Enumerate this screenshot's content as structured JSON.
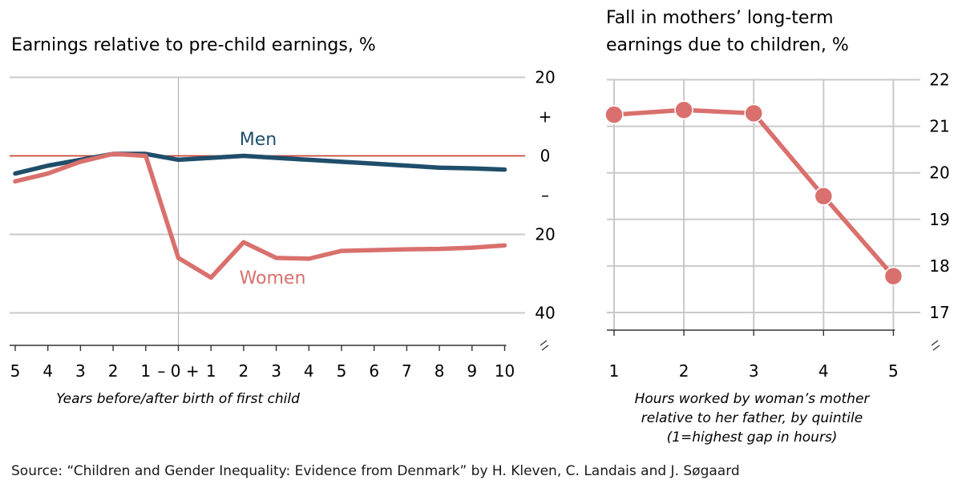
{
  "chart_data": [
    {
      "type": "line",
      "title": "Earnings relative to pre-child earnings, %",
      "xlabel": "Years before/after birth of first child",
      "x_tick_labels": [
        "5",
        "4",
        "3",
        "2",
        "1",
        "– 0 +",
        "1",
        "2",
        "3",
        "4",
        "5",
        "6",
        "7",
        "8",
        "9",
        "10"
      ],
      "x": [
        -5,
        -4,
        -3,
        -2,
        -1,
        0,
        1,
        2,
        3,
        4,
        5,
        6,
        7,
        8,
        9,
        10
      ],
      "y_tick_labels": [
        "20",
        "+",
        "0",
        "–",
        "20",
        "40"
      ],
      "y_ticks": [
        20,
        10,
        0,
        -10,
        -20,
        -40
      ],
      "ylim": [
        -44,
        20
      ],
      "zero_line": true,
      "gridlines": true,
      "axis_break": true,
      "series": [
        {
          "name": "Men",
          "color": "#1f4e6b",
          "values": [
            -4.5,
            -2.5,
            -1,
            0.5,
            0.5,
            -1,
            -0.5,
            0,
            -0.5,
            -1,
            -1.5,
            -2,
            -2.5,
            -3,
            -3.2,
            -3.5
          ]
        },
        {
          "name": "Women",
          "color": "#d9706d",
          "values": [
            -6.5,
            -4.5,
            -1.5,
            0.5,
            0,
            -26,
            -31,
            -22,
            -26,
            -26.2,
            -24.2,
            -24,
            -23.8,
            -23.7,
            -23.4,
            -22.8
          ]
        }
      ]
    },
    {
      "type": "line",
      "title": [
        "Fall in mothers’ long-term",
        "earnings due to children, %"
      ],
      "xlabel": [
        "Hours worked by woman’s mother",
        "relative to her father, by quintile",
        "(1=highest gap in hours)"
      ],
      "x": [
        1,
        2,
        3,
        4,
        5
      ],
      "x_tick_labels": [
        "1",
        "2",
        "3",
        "4",
        "5"
      ],
      "y_ticks": [
        22,
        21,
        20,
        19,
        18,
        17
      ],
      "y_tick_labels": [
        "22",
        "21",
        "20",
        "19",
        "18",
        "17"
      ],
      "ylim": [
        16.7,
        22
      ],
      "gridlines": true,
      "axis_break": true,
      "series": [
        {
          "name": "",
          "color": "#d9706d",
          "markers": true,
          "values": [
            21.25,
            21.35,
            21.28,
            19.5,
            17.78
          ]
        }
      ]
    }
  ],
  "source": "Source: “Children and Gender Inequality: Evidence from Denmark” by H. Kleven, C. Landais and J. Søgaard"
}
